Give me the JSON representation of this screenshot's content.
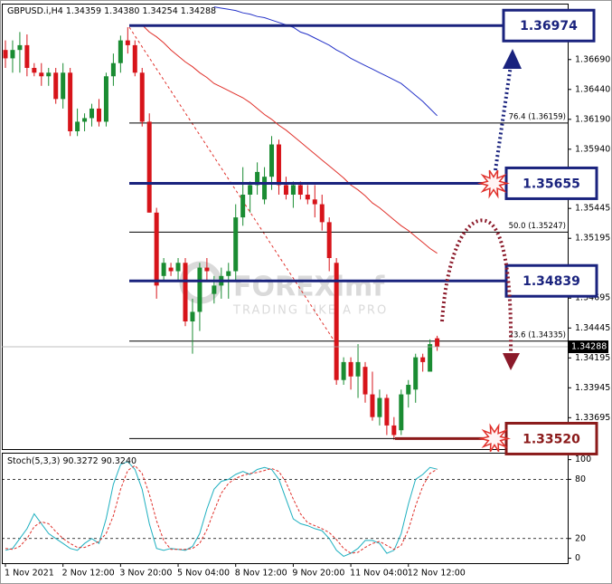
{
  "chart_data": [
    {
      "type": "candlestick",
      "title": "GBPUSD.i,H4",
      "last_value_labels": [
        "1.34359",
        "1.34380",
        "1.34254",
        "1.34288"
      ],
      "categories": [
        "1 Nov 2021",
        null,
        null,
        null,
        null,
        null,
        null,
        null,
        "2 Nov 12:00",
        null,
        null,
        null,
        null,
        null,
        null,
        null,
        "3 Nov 20:00",
        null,
        null,
        null,
        null,
        null,
        null,
        null,
        "5 Nov 04:00",
        null,
        null,
        null,
        null,
        null,
        null,
        null,
        "8 Nov 12:00",
        null,
        null,
        null,
        null,
        null,
        null,
        null,
        "9 Nov 20:00",
        null,
        null,
        null,
        null,
        null,
        null,
        null,
        "11 Nov 04:00",
        null,
        null,
        null,
        null,
        null,
        null,
        null,
        "12 Nov 12:00",
        null,
        null,
        null,
        null
      ],
      "open": [
        1.3677,
        1.367,
        1.3677,
        1.3681,
        1.3662,
        1.3658,
        1.3655,
        1.3658,
        1.3636,
        1.3658,
        1.3609,
        1.3617,
        1.362,
        1.3628,
        1.3617,
        1.3655,
        1.3666,
        1.3685,
        1.3681,
        1.3658,
        1.3617,
        1.3541,
        1.3488,
        1.3495,
        1.3492,
        1.3499,
        1.345,
        1.3458,
        1.3495,
        1.3473,
        1.348,
        1.3488,
        1.3492,
        1.3537,
        1.3556,
        1.3564,
        1.3552,
        1.3571,
        1.3598,
        1.3564,
        1.3556,
        1.3564,
        1.3556,
        1.3552,
        1.3548,
        1.3533,
        1.3499,
        1.3401,
        1.3416,
        1.3404,
        1.3412,
        1.3389,
        1.337,
        1.3386,
        1.3363,
        1.3359,
        1.3389,
        1.3393,
        1.342,
        1.3408,
        1.34359
      ],
      "high": [
        1.3685,
        1.3685,
        1.3692,
        1.369,
        1.3666,
        1.3666,
        1.3662,
        1.3662,
        1.3666,
        1.3662,
        1.3628,
        1.3624,
        1.3632,
        1.3636,
        1.3658,
        1.3674,
        1.3689,
        1.3696,
        1.3685,
        1.3662,
        1.3624,
        1.3545,
        1.3503,
        1.3499,
        1.3503,
        1.3503,
        1.3469,
        1.3499,
        1.3503,
        1.3488,
        1.3495,
        1.3499,
        1.3548,
        1.3579,
        1.3567,
        1.3583,
        1.3579,
        1.3605,
        1.3602,
        1.3571,
        1.3567,
        1.3567,
        1.3564,
        1.3564,
        1.3556,
        1.3537,
        1.3503,
        1.342,
        1.342,
        1.3431,
        1.3416,
        1.3408,
        1.3393,
        1.3389,
        1.337,
        1.3393,
        1.3401,
        1.3423,
        1.3423,
        1.3435,
        1.3438
      ],
      "low": [
        1.3662,
        1.3658,
        1.3658,
        1.3655,
        1.3655,
        1.3647,
        1.3647,
        1.3632,
        1.3628,
        1.3605,
        1.3605,
        1.3609,
        1.3613,
        1.3613,
        1.3613,
        1.3647,
        1.3658,
        1.3674,
        1.3655,
        1.3613,
        1.3541,
        1.3469,
        1.3484,
        1.3488,
        1.3484,
        1.3446,
        1.3423,
        1.3442,
        1.3484,
        1.3465,
        1.3469,
        1.3469,
        1.3484,
        1.353,
        1.3541,
        1.3556,
        1.3548,
        1.356,
        1.3556,
        1.3552,
        1.3545,
        1.3552,
        1.3548,
        1.3537,
        1.3526,
        1.3492,
        1.3397,
        1.3397,
        1.3393,
        1.3386,
        1.3382,
        1.3367,
        1.3363,
        1.3355,
        1.3351,
        1.3355,
        1.3378,
        1.3382,
        1.3408,
        1.3408,
        1.34254
      ],
      "close": [
        1.367,
        1.3677,
        1.3681,
        1.3662,
        1.3658,
        1.3655,
        1.3658,
        1.3636,
        1.3658,
        1.3609,
        1.3617,
        1.362,
        1.3628,
        1.3617,
        1.3655,
        1.3666,
        1.3685,
        1.3681,
        1.3658,
        1.3617,
        1.3541,
        1.348,
        1.3499,
        1.3492,
        1.3499,
        1.345,
        1.3458,
        1.3495,
        1.3492,
        1.348,
        1.3488,
        1.3492,
        1.3537,
        1.3556,
        1.3564,
        1.3575,
        1.3571,
        1.3598,
        1.3564,
        1.3556,
        1.3564,
        1.3556,
        1.3552,
        1.3548,
        1.3533,
        1.3503,
        1.3401,
        1.3416,
        1.3404,
        1.3416,
        1.3389,
        1.337,
        1.3386,
        1.3363,
        1.3355,
        1.3389,
        1.3397,
        1.342,
        1.3416,
        1.3431,
        1.34288
      ],
      "up_color": "#1a8c32",
      "down_color": "#d7141a",
      "moving_averages": [
        {
          "color": "#2432c8",
          "values": [
            null,
            null,
            null,
            null,
            null,
            null,
            null,
            null,
            null,
            null,
            null,
            null,
            null,
            null,
            null,
            null,
            null,
            null,
            null,
            null,
            null,
            null,
            null,
            null,
            null,
            null,
            null,
            null,
            null,
            1.3713,
            1.3712,
            1.3711,
            1.371,
            1.3708,
            1.3707,
            1.3705,
            1.3704,
            1.3702,
            1.37,
            1.3698,
            1.3696,
            1.3692,
            1.369,
            1.3687,
            1.3684,
            1.3681,
            1.3677,
            1.3674,
            1.367,
            1.3667,
            1.3664,
            1.3661,
            1.3658,
            1.3655,
            1.3652,
            1.3649,
            1.3644,
            1.3639,
            1.3634,
            1.3628,
            1.3622
          ]
        },
        {
          "color": "#e0302a",
          "values": [
            null,
            null,
            null,
            null,
            null,
            null,
            null,
            null,
            null,
            null,
            null,
            null,
            null,
            null,
            null,
            null,
            null,
            null,
            null,
            1.3698,
            1.3692,
            1.3688,
            1.3683,
            1.3677,
            1.3672,
            1.3667,
            1.3663,
            1.3658,
            1.3654,
            1.3649,
            1.3646,
            1.3643,
            1.364,
            1.3637,
            1.3633,
            1.3628,
            1.3623,
            1.3619,
            1.3614,
            1.361,
            1.3605,
            1.36,
            1.3595,
            1.359,
            1.3585,
            1.358,
            1.3575,
            1.357,
            1.3564,
            1.356,
            1.3555,
            1.3549,
            1.3545,
            1.354,
            1.3535,
            1.353,
            1.3526,
            1.3521,
            1.3516,
            1.3511,
            1.3507
          ]
        }
      ],
      "ylim": [
        1.3344,
        1.3715
      ],
      "yticks": [
        {
          "value": 1.3669,
          "label": "1.36690"
        },
        {
          "value": 1.3644,
          "label": "1.36440"
        },
        {
          "value": 1.3619,
          "label": "1.36190"
        },
        {
          "value": 1.3594,
          "label": "1.35940"
        },
        1.35445,
        1.35195,
        1.34695,
        1.34445,
        1.34195,
        1.33945,
        1.33695
      ],
      "levels": {
        "values": [
          1.36974,
          1.35655,
          1.34839,
          1.3352
        ],
        "value_labels": [
          "1.36974",
          "1.35655",
          "1.34839",
          "1.33520"
        ],
        "colors": [
          "#1a237e",
          "#1a237e",
          "#1a237e",
          "#8b1a1a"
        ]
      },
      "fibonacci": {
        "values": [
          1.36159,
          1.35247,
          1.34335
        ],
        "value_labels": [
          "76.4 (1.36159)",
          "50.0 (1.35247)",
          "23.6 (1.34335)"
        ]
      },
      "watermark": [
        "FOREXimf",
        "TRADING LIKE A PRO"
      ]
    },
    {
      "type": "line",
      "title": "Stoch(5,3,3)",
      "last_value_labels": [
        "90.3272",
        "90.3240"
      ],
      "series": [
        {
          "color": "#1fb0c0",
          "values": [
            8,
            10,
            20,
            30,
            45,
            35,
            25,
            20,
            15,
            10,
            8,
            15,
            20,
            15,
            40,
            75,
            95,
            98,
            90,
            70,
            35,
            10,
            8,
            10,
            9,
            8,
            12,
            25,
            50,
            70,
            78,
            80,
            85,
            88,
            85,
            90,
            92,
            90,
            80,
            60,
            40,
            35,
            33,
            30,
            28,
            20,
            8,
            2,
            5,
            10,
            18,
            18,
            15,
            5,
            8,
            25,
            55,
            80,
            85,
            92,
            90.3272
          ]
        },
        {
          "color": "#e0302a",
          "values": [
            10,
            9,
            12,
            20,
            32,
            37,
            35,
            27,
            20,
            15,
            11,
            11,
            14,
            17,
            25,
            43,
            70,
            89,
            94,
            86,
            65,
            38,
            18,
            9,
            9,
            9,
            10,
            15,
            29,
            48,
            66,
            76,
            81,
            84,
            86,
            87,
            89,
            91,
            88,
            77,
            60,
            45,
            36,
            33,
            30,
            26,
            19,
            10,
            5,
            6,
            11,
            15,
            17,
            13,
            9,
            13,
            29,
            53,
            73,
            86,
            90.324
          ]
        }
      ],
      "ylim": [
        -5,
        107
      ],
      "yticks": [
        100,
        80,
        20,
        0
      ],
      "dashed_levels": [
        80,
        20
      ]
    }
  ]
}
